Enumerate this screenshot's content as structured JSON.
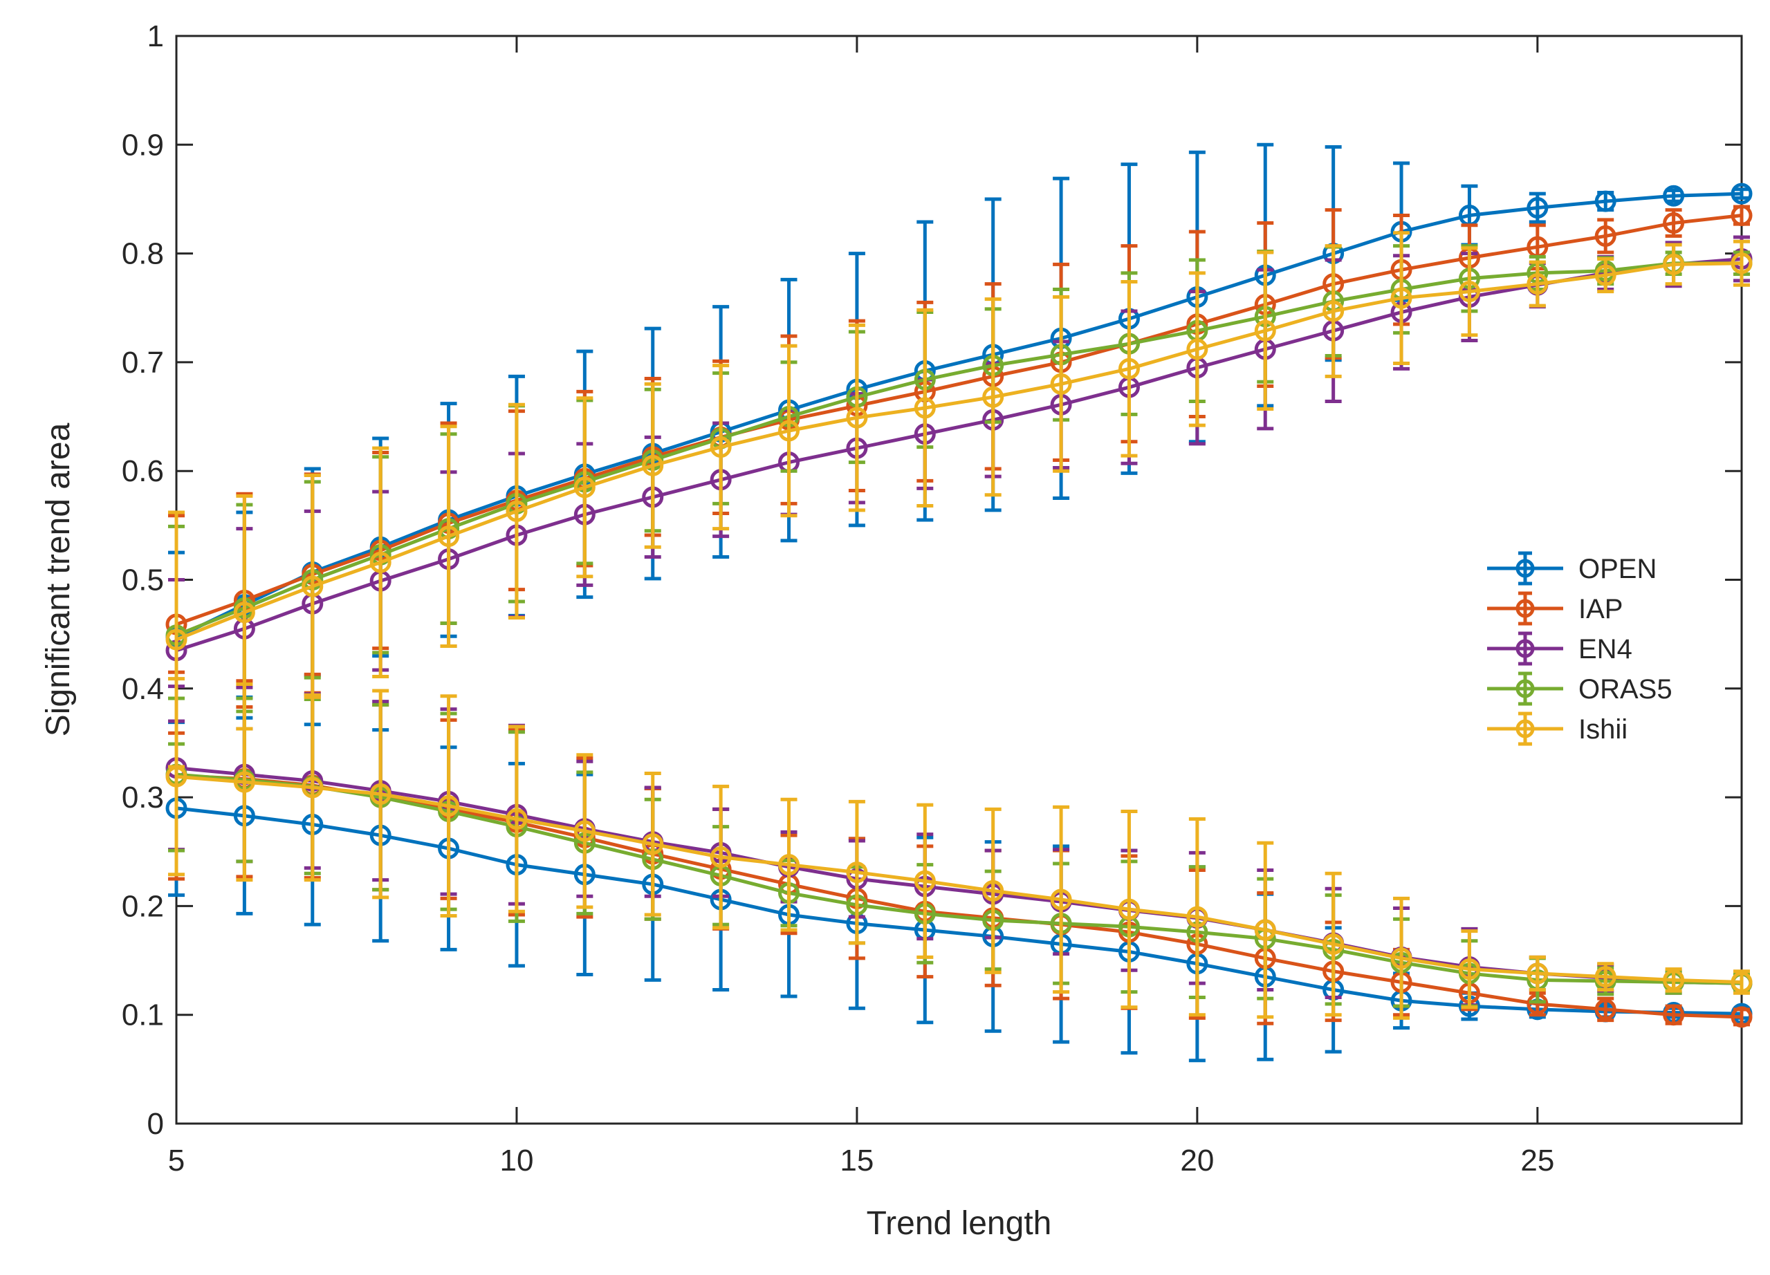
{
  "chart_data": {
    "type": "line",
    "title": "",
    "xlabel": "Trend length",
    "ylabel": "Significant trend area",
    "xlim": [
      5,
      28
    ],
    "ylim": [
      0,
      1
    ],
    "xticks": [
      5,
      10,
      15,
      20,
      25
    ],
    "xtick_labels": [
      "5",
      "10",
      "15",
      "20",
      "25"
    ],
    "yticks": [
      0,
      0.1,
      0.2,
      0.3,
      0.4,
      0.5,
      0.6,
      0.7,
      0.8,
      0.9,
      1
    ],
    "ytick_labels": [
      "0",
      "0.1",
      "0.2",
      "0.3",
      "0.4",
      "0.5",
      "0.6",
      "0.7",
      "0.8",
      "0.9",
      "1"
    ],
    "grid": false,
    "legend_position": "right",
    "x": [
      5,
      6,
      7,
      8,
      9,
      10,
      11,
      12,
      13,
      14,
      15,
      16,
      17,
      18,
      19,
      20,
      21,
      22,
      23,
      24,
      25,
      26,
      27,
      28
    ],
    "series": [
      {
        "name": "OPEN",
        "color": "#0072BD",
        "upper": [
          0.447,
          0.477,
          0.507,
          0.53,
          0.555,
          0.577,
          0.597,
          0.616,
          0.636,
          0.656,
          0.675,
          0.692,
          0.707,
          0.722,
          0.74,
          0.76,
          0.78,
          0.8,
          0.82,
          0.835,
          0.842,
          0.848,
          0.853,
          0.855
        ],
        "upper_err": [
          0.078,
          0.085,
          0.095,
          0.1,
          0.107,
          0.11,
          0.113,
          0.115,
          0.115,
          0.12,
          0.125,
          0.137,
          0.143,
          0.147,
          0.142,
          0.133,
          0.12,
          0.098,
          0.063,
          0.027,
          0.013,
          0.008,
          0.005,
          0.004
        ],
        "lower": [
          0.29,
          0.283,
          0.275,
          0.265,
          0.253,
          0.238,
          0.229,
          0.22,
          0.206,
          0.192,
          0.184,
          0.178,
          0.172,
          0.165,
          0.158,
          0.147,
          0.135,
          0.123,
          0.113,
          0.108,
          0.105,
          0.103,
          0.102,
          0.101
        ],
        "lower_err": [
          0.08,
          0.09,
          0.092,
          0.097,
          0.093,
          0.093,
          0.092,
          0.088,
          0.083,
          0.075,
          0.078,
          0.085,
          0.087,
          0.09,
          0.093,
          0.089,
          0.076,
          0.057,
          0.025,
          0.012,
          0.007,
          0.005,
          0.004,
          0.004
        ]
      },
      {
        "name": "IAP",
        "color": "#D95319",
        "upper": [
          0.459,
          0.481,
          0.505,
          0.527,
          0.552,
          0.573,
          0.593,
          0.613,
          0.631,
          0.647,
          0.66,
          0.673,
          0.687,
          0.7,
          0.717,
          0.735,
          0.753,
          0.772,
          0.785,
          0.796,
          0.806,
          0.816,
          0.828,
          0.835
        ],
        "upper_err": [
          0.1,
          0.098,
          0.092,
          0.09,
          0.092,
          0.082,
          0.08,
          0.072,
          0.07,
          0.077,
          0.078,
          0.082,
          0.085,
          0.09,
          0.09,
          0.085,
          0.075,
          0.068,
          0.05,
          0.03,
          0.02,
          0.015,
          0.012,
          0.008
        ],
        "lower": [
          0.32,
          0.317,
          0.311,
          0.3,
          0.289,
          0.277,
          0.263,
          0.248,
          0.234,
          0.22,
          0.207,
          0.195,
          0.189,
          0.183,
          0.176,
          0.165,
          0.152,
          0.14,
          0.13,
          0.12,
          0.11,
          0.105,
          0.1,
          0.098
        ],
        "lower_err": [
          0.095,
          0.09,
          0.085,
          0.085,
          0.082,
          0.085,
          0.073,
          0.06,
          0.055,
          0.045,
          0.055,
          0.06,
          0.062,
          0.068,
          0.07,
          0.068,
          0.06,
          0.045,
          0.03,
          0.015,
          0.01,
          0.01,
          0.008,
          0.007
        ]
      },
      {
        "name": "EN4",
        "color": "#7E2F8E",
        "upper": [
          0.435,
          0.455,
          0.478,
          0.499,
          0.519,
          0.541,
          0.56,
          0.576,
          0.592,
          0.608,
          0.621,
          0.634,
          0.647,
          0.661,
          0.677,
          0.695,
          0.712,
          0.729,
          0.746,
          0.76,
          0.771,
          0.782,
          0.79,
          0.795
        ],
        "upper_err": [
          0.065,
          0.092,
          0.085,
          0.082,
          0.08,
          0.075,
          0.065,
          0.055,
          0.052,
          0.048,
          0.05,
          0.05,
          0.052,
          0.058,
          0.07,
          0.07,
          0.073,
          0.065,
          0.052,
          0.04,
          0.02,
          0.015,
          0.02,
          0.02
        ],
        "lower": [
          0.327,
          0.321,
          0.315,
          0.306,
          0.296,
          0.284,
          0.271,
          0.259,
          0.249,
          0.236,
          0.225,
          0.218,
          0.211,
          0.204,
          0.196,
          0.189,
          0.178,
          0.166,
          0.153,
          0.144,
          0.138,
          0.134,
          0.13,
          0.129
        ],
        "lower_err": [
          0.075,
          0.08,
          0.08,
          0.082,
          0.085,
          0.082,
          0.062,
          0.05,
          0.04,
          0.032,
          0.035,
          0.048,
          0.04,
          0.048,
          0.055,
          0.06,
          0.055,
          0.05,
          0.045,
          0.035,
          0.015,
          0.012,
          0.01,
          0.008
        ]
      },
      {
        "name": "ORAS5",
        "color": "#77AC30",
        "upper": [
          0.449,
          0.474,
          0.5,
          0.523,
          0.547,
          0.57,
          0.59,
          0.61,
          0.63,
          0.65,
          0.668,
          0.684,
          0.697,
          0.707,
          0.717,
          0.729,
          0.742,
          0.756,
          0.767,
          0.777,
          0.782,
          0.784,
          0.791,
          0.791
        ],
        "upper_err": [
          0.1,
          0.095,
          0.09,
          0.09,
          0.087,
          0.09,
          0.075,
          0.065,
          0.06,
          0.05,
          0.06,
          0.062,
          0.052,
          0.06,
          0.065,
          0.065,
          0.06,
          0.05,
          0.04,
          0.03,
          0.015,
          0.012,
          0.01,
          0.01
        ],
        "lower": [
          0.321,
          0.316,
          0.31,
          0.3,
          0.287,
          0.273,
          0.258,
          0.243,
          0.228,
          0.212,
          0.201,
          0.193,
          0.187,
          0.184,
          0.181,
          0.176,
          0.17,
          0.16,
          0.148,
          0.138,
          0.132,
          0.131,
          0.13,
          0.129
        ],
        "lower_err": [
          0.07,
          0.075,
          0.08,
          0.085,
          0.09,
          0.087,
          0.065,
          0.055,
          0.045,
          0.03,
          0.035,
          0.045,
          0.045,
          0.055,
          0.06,
          0.06,
          0.055,
          0.05,
          0.04,
          0.03,
          0.02,
          0.012,
          0.01,
          0.008
        ]
      },
      {
        "name": "Ishii",
        "color": "#EDB120",
        "upper": [
          0.445,
          0.47,
          0.494,
          0.516,
          0.54,
          0.563,
          0.585,
          0.605,
          0.622,
          0.637,
          0.649,
          0.658,
          0.668,
          0.68,
          0.694,
          0.712,
          0.729,
          0.747,
          0.759,
          0.765,
          0.772,
          0.78,
          0.79,
          0.791
        ],
        "upper_err": [
          0.117,
          0.107,
          0.102,
          0.105,
          0.101,
          0.098,
          0.082,
          0.075,
          0.075,
          0.078,
          0.085,
          0.09,
          0.09,
          0.08,
          0.08,
          0.07,
          0.072,
          0.06,
          0.06,
          0.04,
          0.02,
          0.015,
          0.018,
          0.02
        ],
        "lower": [
          0.319,
          0.314,
          0.309,
          0.303,
          0.292,
          0.28,
          0.269,
          0.257,
          0.245,
          0.238,
          0.231,
          0.223,
          0.214,
          0.206,
          0.197,
          0.19,
          0.178,
          0.165,
          0.152,
          0.142,
          0.138,
          0.135,
          0.132,
          0.13
        ],
        "lower_err": [
          0.09,
          0.09,
          0.085,
          0.095,
          0.101,
          0.085,
          0.07,
          0.065,
          0.065,
          0.06,
          0.065,
          0.07,
          0.075,
          0.085,
          0.09,
          0.09,
          0.08,
          0.065,
          0.055,
          0.035,
          0.015,
          0.012,
          0.01,
          0.01
        ]
      }
    ]
  }
}
